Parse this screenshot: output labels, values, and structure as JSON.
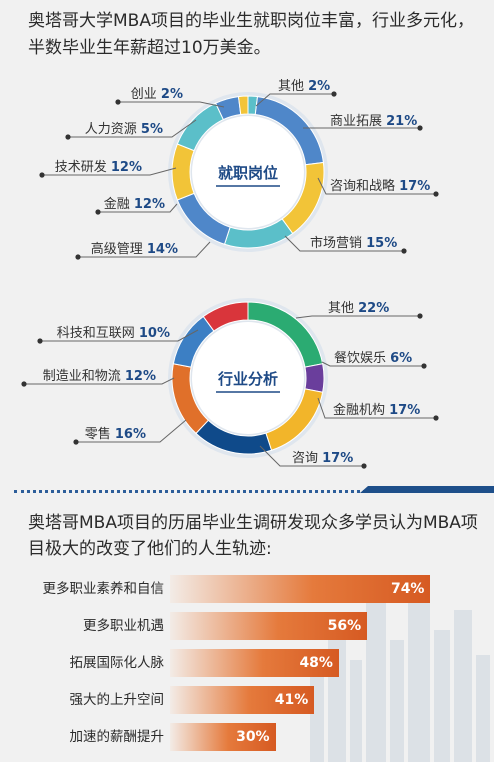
{
  "intro_text": "奥塔哥大学MBA项目的毕业生就职岗位丰富，行业多元化，半数毕业生年薪超过10万美金。",
  "survey_text": "奥塔哥MBA项目的历届毕业生调研发现众多学员认为MBA项目极大的改变了他们的人生轨迹:",
  "chart_data": [
    {
      "type": "pie",
      "title": "就职岗位",
      "categories": [
        "其他",
        "商业拓展",
        "咨询和战略",
        "市场营销",
        "高级管理",
        "金融",
        "技术研发",
        "人力资源",
        "创业"
      ],
      "value_labels": [
        "2%",
        "21%",
        "17%",
        "15%",
        "14%",
        "12%",
        "12%",
        "5%",
        "2%"
      ],
      "values": [
        2,
        21,
        17,
        15,
        14,
        12,
        12,
        5,
        2
      ],
      "colors": [
        "#5bbfc9",
        "#4f87c9",
        "#f2c438",
        "#5bbfc9",
        "#4f87c9",
        "#f2c438",
        "#5bbfc9",
        "#4f87c9",
        "#f2c438"
      ]
    },
    {
      "type": "pie",
      "title": "行业分析",
      "categories": [
        "其他",
        "餐饮娱乐",
        "金融机构",
        "咨询",
        "零售",
        "制造业和物流",
        "科技和互联网"
      ],
      "value_labels": [
        "22%",
        "6%",
        "17%",
        "17%",
        "16%",
        "12%",
        "10%"
      ],
      "values": [
        22,
        6,
        17,
        17,
        16,
        12,
        10
      ],
      "colors": [
        "#2bab72",
        "#6a3e9c",
        "#f2b52a",
        "#0f4a8a",
        "#e0702a",
        "#3c7fc4",
        "#d9353b"
      ]
    },
    {
      "type": "bar",
      "categories": [
        "更多职业素养和自信",
        "更多职业机遇",
        "拓展国际化人脉",
        "强大的上升空间",
        "加速的薪酬提升"
      ],
      "values": [
        74,
        56,
        48,
        41,
        30
      ],
      "value_labels": [
        "74%",
        "56%",
        "48%",
        "41%",
        "30%"
      ]
    }
  ]
}
